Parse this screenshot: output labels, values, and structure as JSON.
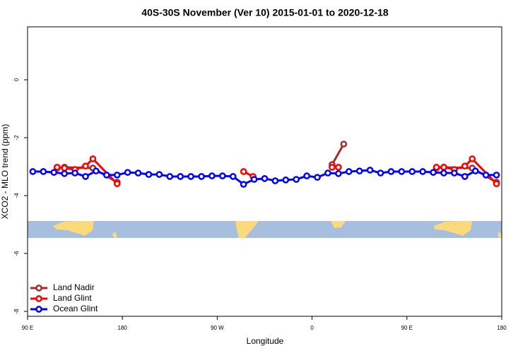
{
  "chart_data": {
    "type": "line",
    "title": "40S-30S November (Ver 10)   2015-01-01 to 2020-12-18",
    "x_label": "Longitude",
    "y_label": "XCO2 - MLO trend (ppm)",
    "xlim": [
      90,
      540
    ],
    "ylim": [
      -8.17,
      1.83
    ],
    "xticks": [
      {
        "value": 90,
        "label": "90 E"
      },
      180,
      {
        "value": 270,
        "label": "90 W"
      },
      {
        "value": 360,
        "label": "0"
      },
      {
        "value": 450,
        "label": "90 E"
      },
      {
        "value": 540,
        "label": "180"
      }
    ],
    "yticks": [
      0,
      -2,
      -4,
      -6,
      -8
    ],
    "legend_position": "bottom-left",
    "series": [
      {
        "name": "Land Nadir",
        "color": "#a52a2a",
        "x": [
          118,
          125,
          152,
          175,
          null,
          379,
          390,
          null,
          478,
          485,
          512,
          535
        ],
        "values": [
          -3.05,
          -3.02,
          -3.05,
          -3.54,
          null,
          -2.93,
          -2.22,
          null,
          -3.05,
          -3.02,
          -3.05,
          -3.54
        ]
      },
      {
        "name": "Land Glint",
        "color": "#ff0000",
        "x": [
          118,
          125,
          135,
          145,
          152,
          175,
          null,
          295,
          304,
          null,
          379,
          385,
          null,
          478,
          485,
          495,
          505,
          512,
          535
        ],
        "values": [
          -3.02,
          -3.05,
          -3.1,
          -2.98,
          -2.73,
          -3.59,
          null,
          -3.17,
          -3.34,
          null,
          -3.02,
          -3.02,
          null,
          -3.02,
          -3.02,
          -3.1,
          -2.98,
          -2.73,
          -3.59
        ]
      },
      {
        "name": "Ocean Glint",
        "color": "#0000ff",
        "x": [
          95,
          105,
          115,
          125,
          135,
          145,
          155,
          165,
          175,
          185,
          195,
          205,
          215,
          225,
          235,
          245,
          255,
          265,
          275,
          285,
          295,
          305,
          315,
          325,
          335,
          345,
          355,
          365,
          375,
          385,
          395,
          405,
          415,
          425,
          435,
          445,
          455,
          465,
          475,
          485,
          495,
          505,
          515,
          525,
          535
        ],
        "values": [
          -3.17,
          -3.17,
          -3.2,
          -3.24,
          -3.22,
          -3.34,
          -3.15,
          -3.29,
          -3.29,
          -3.2,
          -3.22,
          -3.27,
          -3.27,
          -3.34,
          -3.34,
          -3.34,
          -3.34,
          -3.32,
          -3.32,
          -3.34,
          -3.61,
          -3.44,
          -3.41,
          -3.49,
          -3.46,
          -3.44,
          -3.32,
          -3.37,
          -3.22,
          -3.24,
          -3.17,
          -3.15,
          -3.12,
          -3.22,
          -3.17,
          -3.17,
          -3.17,
          -3.17,
          -3.2,
          -3.22,
          -3.22,
          -3.34,
          -3.15,
          -3.29,
          -3.29
        ]
      }
    ]
  }
}
